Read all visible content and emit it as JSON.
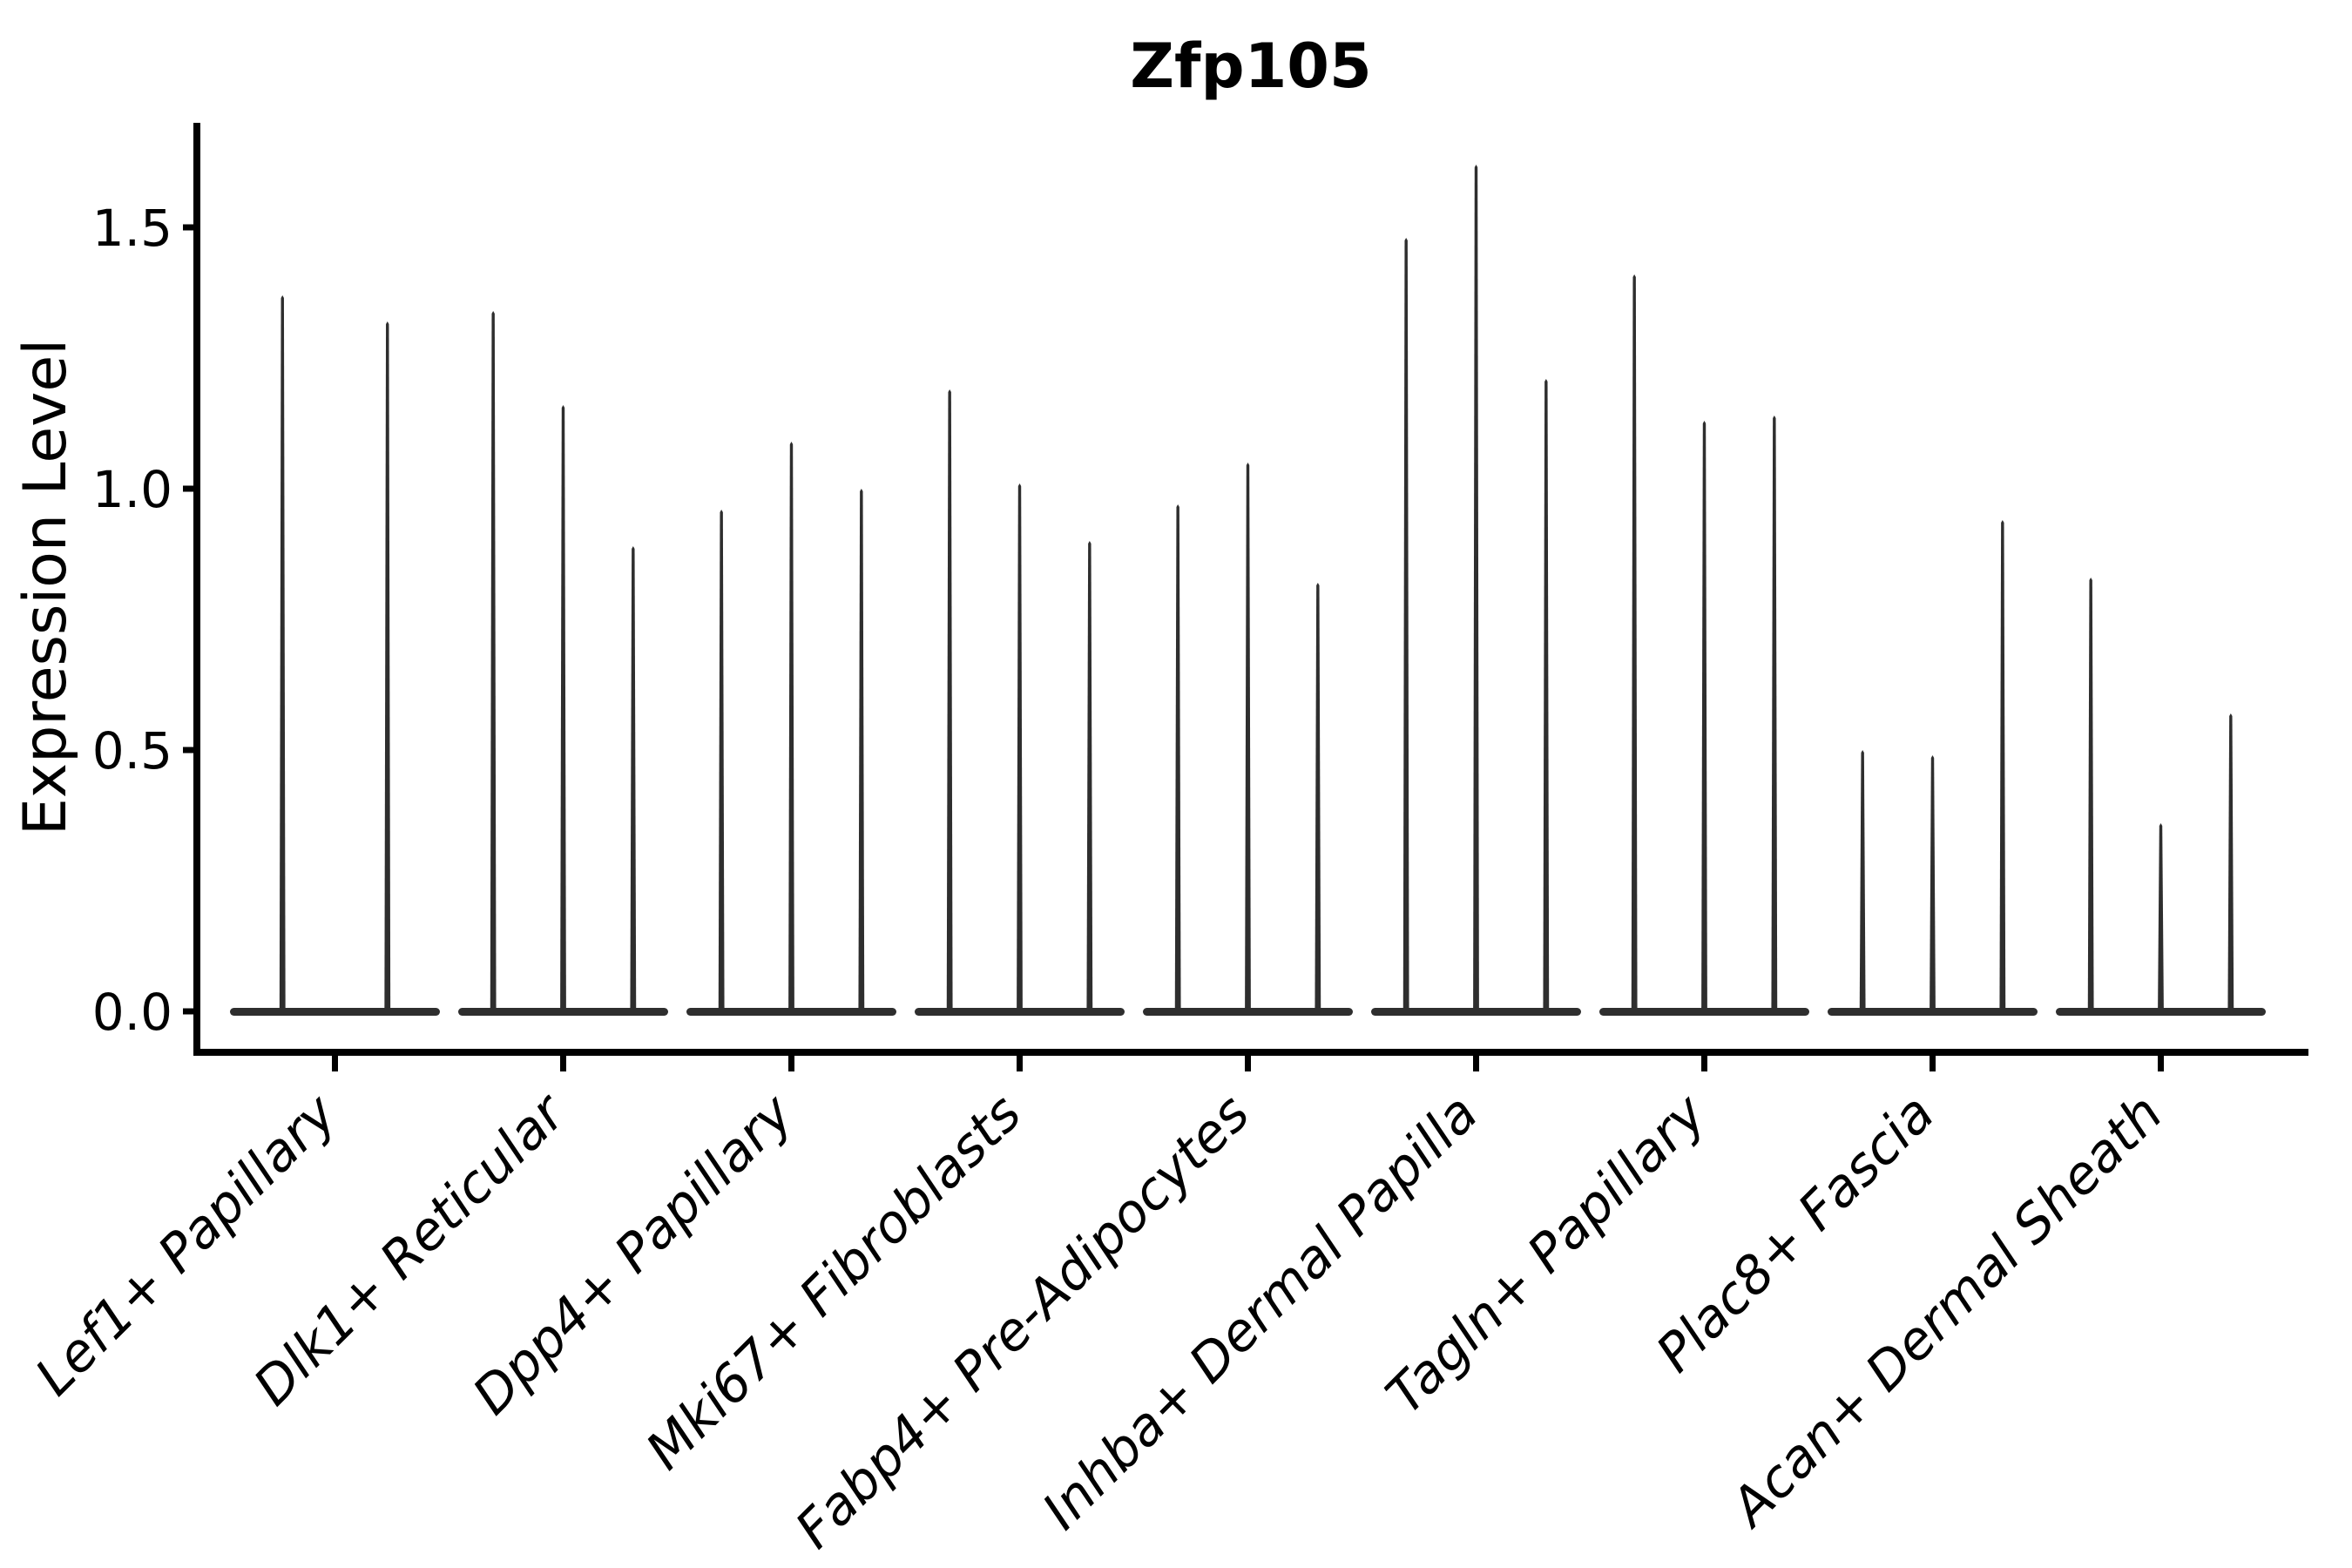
{
  "page": {
    "background": "#ffffff"
  },
  "style": {
    "violin_color": "#2e2e2e",
    "axis_color": "#000000",
    "text_color": "#000000"
  },
  "chart_data": {
    "type": "violin",
    "title": "Zfp105",
    "xlabel": "",
    "ylabel": "Expression Level",
    "ylim": [
      -0.08,
      1.7
    ],
    "yticks": [
      0.0,
      0.5,
      1.0,
      1.5
    ],
    "ytick_labels": [
      "0.0",
      "0.5",
      "1.0",
      "1.5"
    ],
    "grid": false,
    "legend": "none",
    "x_tick_label_rotation": 45,
    "x_tick_label_style": "italic",
    "violin_shape_note": "each violin is a near-zero-width density: a wide flat bulge at 0 plus a thin spike reaching its maximum expression value",
    "categories": [
      "Lef1+ Papillary",
      "Dlk1+ Reticular",
      "Dpp4+ Papillary",
      "Mki67+ Fibroblasts",
      "Fabp4+ Pre-Adipocytes",
      "Inhba+ Dermal Papilla",
      "Tagln+ Papillary",
      "Plac8+ Fascia",
      "Acan+ Dermal Sheath"
    ],
    "groups": [
      {
        "label": "Lef1+ Papillary",
        "violin_max_values": [
          1.37,
          1.32
        ]
      },
      {
        "label": "Dlk1+ Reticular",
        "violin_max_values": [
          1.34,
          1.16,
          0.89
        ]
      },
      {
        "label": "Dpp4+ Papillary",
        "violin_max_values": [
          0.96,
          1.09,
          1.0
        ]
      },
      {
        "label": "Mki67+ Fibroblasts",
        "violin_max_values": [
          1.19,
          1.01,
          0.9
        ]
      },
      {
        "label": "Fabp4+ Pre-Adipocytes",
        "violin_max_values": [
          0.97,
          1.05,
          0.82
        ]
      },
      {
        "label": "Inhba+ Dermal Papilla",
        "violin_max_values": [
          1.48,
          1.62,
          1.21
        ]
      },
      {
        "label": "Tagln+ Papillary",
        "violin_max_values": [
          1.41,
          1.13,
          1.14
        ]
      },
      {
        "label": "Plac8+ Fascia",
        "violin_max_values": [
          0.5,
          0.49,
          0.94
        ]
      },
      {
        "label": "Acan+ Dermal Sheath",
        "violin_max_values": [
          0.83,
          0.36,
          0.57
        ]
      }
    ]
  }
}
